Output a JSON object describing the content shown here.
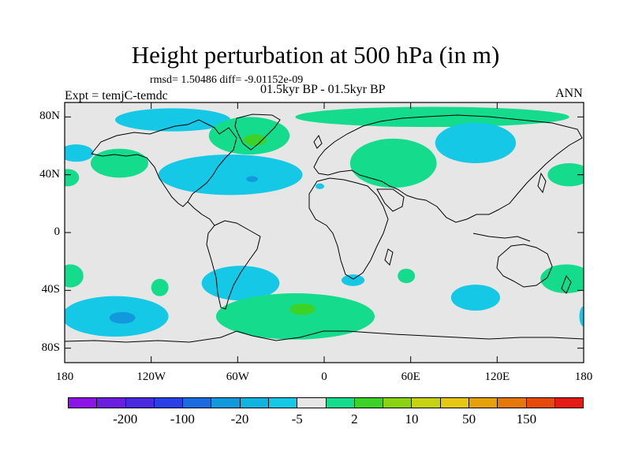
{
  "title": "Height perturbation at 500 hPa (in m)",
  "stats": "rmsd= 1.50486 diff= -9.01152e-09",
  "period": "01.5kyr BP - 01.5kyr BP",
  "experiment": "Expt = temjC-temdc",
  "season": "ANN",
  "map": {
    "projection": "cylindrical equidistant",
    "lon_range": [
      -180,
      180
    ],
    "lat_range": [
      -90,
      90
    ],
    "background_color": "#e6e6e6",
    "y_ticks": [
      {
        "lat": 80,
        "label": "80N"
      },
      {
        "lat": 40,
        "label": "40N"
      },
      {
        "lat": 0,
        "label": "0"
      },
      {
        "lat": -40,
        "label": "40S"
      },
      {
        "lat": -80,
        "label": "80S"
      }
    ],
    "x_ticks": [
      {
        "lon": -180,
        "label": "180"
      },
      {
        "lon": -120,
        "label": "120W"
      },
      {
        "lon": -60,
        "label": "60W"
      },
      {
        "lon": 0,
        "label": "0"
      },
      {
        "lon": 60,
        "label": "60E"
      },
      {
        "lon": 120,
        "label": "120E"
      },
      {
        "lon": 180,
        "label": "180"
      }
    ],
    "anomalies": [
      {
        "name": "arctic-negative",
        "sign": "negative",
        "level": "-5",
        "lon": -105,
        "lat": 78,
        "rlon": 40,
        "rlat": 8
      },
      {
        "name": "north-pacific-negative",
        "sign": "negative",
        "level": "-5",
        "lon": -172,
        "lat": 55,
        "rlon": 12,
        "rlat": 6
      },
      {
        "name": "north-pacific-positive",
        "sign": "positive",
        "level": "2",
        "lon": -142,
        "lat": 48,
        "rlon": 20,
        "rlat": 10
      },
      {
        "name": "west-pacific-edge-positive",
        "sign": "positive",
        "level": "2",
        "lon": -178,
        "lat": 38,
        "rlon": 8,
        "rlat": 6
      },
      {
        "name": "north-america-negative",
        "sign": "negative",
        "level": "-5",
        "lon": -65,
        "lat": 40,
        "rlon": 50,
        "rlat": 14
      },
      {
        "name": "north-america-inner-negative",
        "sign": "negative",
        "level": "-20",
        "lon": -50,
        "lat": 37,
        "rlon": 4,
        "rlat": 2
      },
      {
        "name": "greenland-positive",
        "sign": "positive",
        "level": "2",
        "lon": -52,
        "lat": 67,
        "rlon": 28,
        "rlat": 13
      },
      {
        "name": "greenland-inner-positive",
        "sign": "positive",
        "level": "10",
        "lon": -48,
        "lat": 64,
        "rlon": 8,
        "rlat": 4
      },
      {
        "name": "arctic-east-positive",
        "sign": "positive",
        "level": "2",
        "lon": 75,
        "lat": 80,
        "rlon": 95,
        "rlat": 7
      },
      {
        "name": "siberia-negative",
        "sign": "negative",
        "level": "-5",
        "lon": 105,
        "lat": 62,
        "rlon": 28,
        "rlat": 14
      },
      {
        "name": "europe-positive",
        "sign": "positive",
        "level": "2",
        "lon": 48,
        "lat": 48,
        "rlon": 30,
        "rlat": 17
      },
      {
        "name": "mediterranean-negative",
        "sign": "negative",
        "level": "-5",
        "lon": -3,
        "lat": 32,
        "rlon": 3,
        "rlat": 2
      },
      {
        "name": "east-pacific-positive",
        "sign": "positive",
        "level": "2",
        "lon": 170,
        "lat": 40,
        "rlon": 15,
        "rlat": 8
      },
      {
        "name": "south-pacific-west-positive",
        "sign": "positive",
        "level": "2",
        "lon": -176,
        "lat": -30,
        "rlon": 9,
        "rlat": 8
      },
      {
        "name": "south-pacific-small-positive",
        "sign": "positive",
        "level": "2",
        "lon": -114,
        "lat": -38,
        "rlon": 6,
        "rlat": 6
      },
      {
        "name": "south-pacific-negative",
        "sign": "negative",
        "level": "-5",
        "lon": -145,
        "lat": -58,
        "rlon": 37,
        "rlat": 14
      },
      {
        "name": "south-pacific-inner-negative",
        "sign": "negative",
        "level": "-20",
        "lon": -140,
        "lat": -59,
        "rlon": 9,
        "rlat": 4
      },
      {
        "name": "south-america-negative",
        "sign": "negative",
        "level": "-5",
        "lon": -58,
        "lat": -35,
        "rlon": 27,
        "rlat": 12
      },
      {
        "name": "atlantic-positive",
        "sign": "positive",
        "level": "2",
        "lon": -20,
        "lat": -58,
        "rlon": 55,
        "rlat": 16
      },
      {
        "name": "atlantic-inner-positive",
        "sign": "positive",
        "level": "10",
        "lon": -15,
        "lat": -53,
        "rlon": 9,
        "rlat": 4
      },
      {
        "name": "south-africa-negative",
        "sign": "negative",
        "level": "-5",
        "lon": 20,
        "lat": -33,
        "rlon": 8,
        "rlat": 4
      },
      {
        "name": "indian-ocean-positive",
        "sign": "positive",
        "level": "2",
        "lon": 57,
        "lat": -30,
        "rlon": 6,
        "rlat": 5
      },
      {
        "name": "indian-ocean-negative",
        "sign": "negative",
        "level": "-5",
        "lon": 105,
        "lat": -45,
        "rlon": 17,
        "rlat": 9
      },
      {
        "name": "tasman-positive",
        "sign": "positive",
        "level": "2",
        "lon": 168,
        "lat": -32,
        "rlon": 18,
        "rlat": 10
      },
      {
        "name": "east-edge-negative",
        "sign": "negative",
        "level": "-5",
        "lon": 180,
        "lat": -58,
        "rlon": 3,
        "rlat": 7
      }
    ]
  },
  "colorbar": {
    "colors": [
      "#8c14e6",
      "#6a1ee0",
      "#4a2ae0",
      "#2840e6",
      "#1a6ae0",
      "#1298dc",
      "#10b4e0",
      "#14c8e6",
      "#e6e6e6",
      "#14dc8c",
      "#3cd228",
      "#8ad214",
      "#c6d214",
      "#e6c814",
      "#e6a00a",
      "#e6780a",
      "#e64a0a",
      "#e61a14"
    ],
    "labels": [
      {
        "text": "-200",
        "after_index": 1
      },
      {
        "text": "-100",
        "after_index": 3
      },
      {
        "text": "-20",
        "after_index": 5
      },
      {
        "text": "-5",
        "after_index": 7
      },
      {
        "text": "2",
        "after_index": 9
      },
      {
        "text": "10",
        "after_index": 11
      },
      {
        "text": "50",
        "after_index": 13
      },
      {
        "text": "150",
        "after_index": 15
      }
    ]
  },
  "level_colors": {
    "-20": "#1298dc",
    "-5": "#14c8e6",
    "2": "#14dc8c",
    "10": "#3cd228"
  }
}
